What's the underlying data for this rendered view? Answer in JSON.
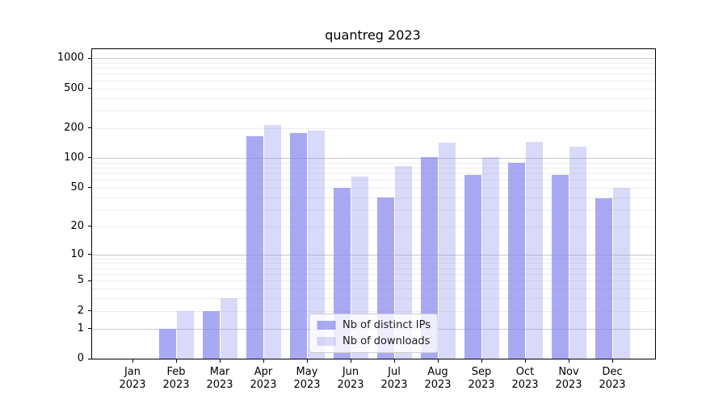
{
  "chart_data": {
    "type": "bar",
    "title": "quantreg 2023",
    "categories": [
      "Jan",
      "Feb",
      "Mar",
      "Apr",
      "May",
      "Jun",
      "Jul",
      "Aug",
      "Sep",
      "Oct",
      "Nov",
      "Dec"
    ],
    "year_label": "2023",
    "series": [
      {
        "name": "Nb of distinct IPs",
        "color": "#8888ee",
        "alpha": 0.72,
        "values": [
          0,
          1,
          2,
          167,
          179,
          50,
          40,
          102,
          68,
          89,
          67,
          39
        ]
      },
      {
        "name": "Nb of downloads",
        "color": "#8888ee",
        "alpha": 0.32,
        "values": [
          0,
          2,
          3,
          213,
          187,
          65,
          83,
          143,
          101,
          145,
          129,
          50
        ]
      }
    ],
    "yscale": "log1p",
    "yticks": [
      0,
      1,
      2,
      5,
      10,
      20,
      50,
      100,
      200,
      500,
      1000
    ],
    "ylim": [
      0,
      1230
    ],
    "grid": true,
    "legend_position": "lower center",
    "colors": {
      "major_grid": "#c8c8c8",
      "minor_grid": "#ededed",
      "axis": "#000000",
      "legend_border": "#cccccc"
    }
  }
}
